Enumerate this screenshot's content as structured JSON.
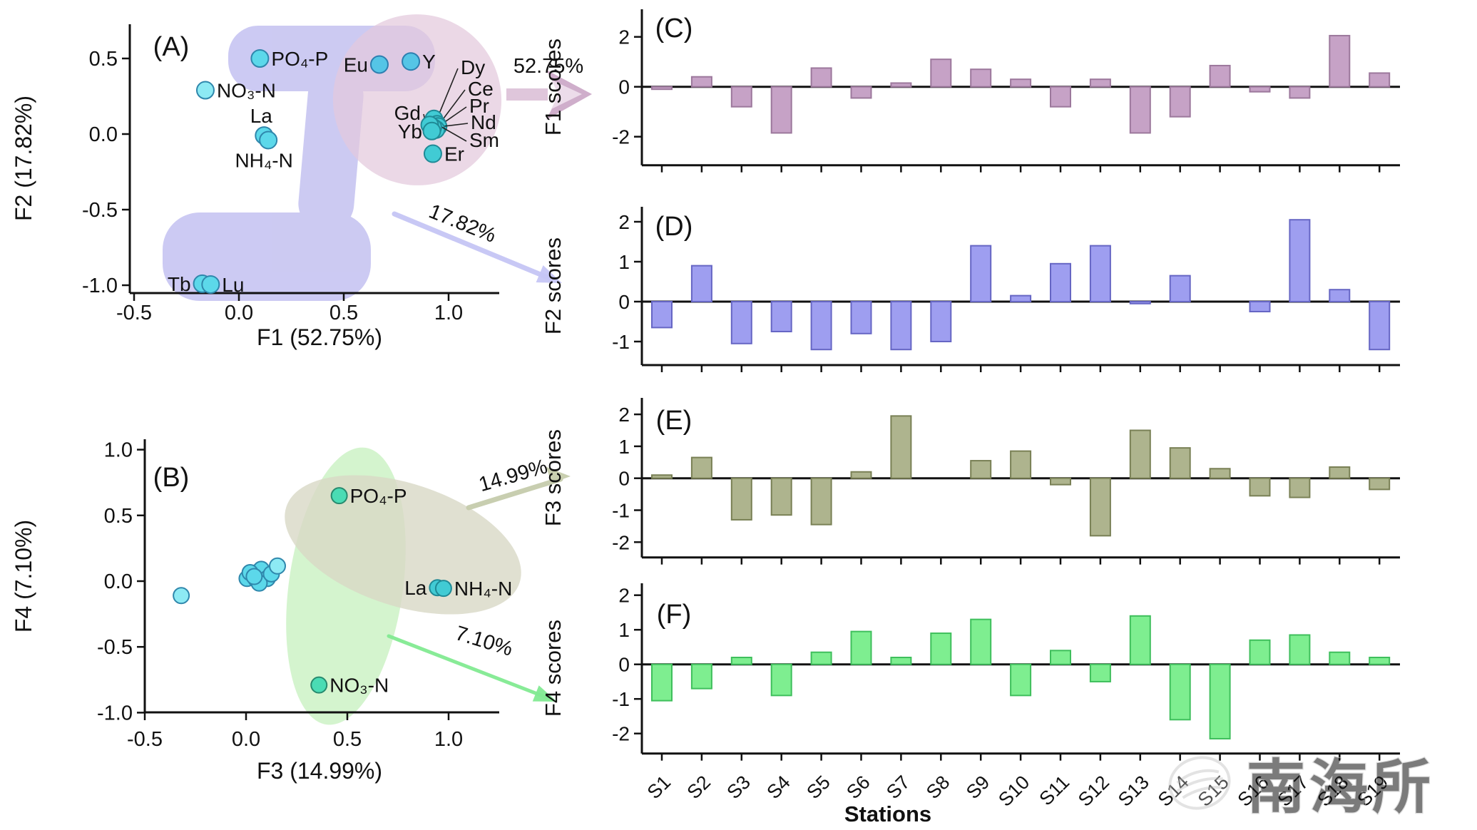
{
  "watermark": {
    "text": "南海所",
    "logo": "shell-logo"
  },
  "stations_axis_label": "Stations",
  "stations": [
    "S1",
    "S2",
    "S3",
    "S4",
    "S5",
    "S6",
    "S7",
    "S8",
    "S9",
    "S10",
    "S11",
    "S12",
    "S13",
    "S14",
    "S15",
    "S16",
    "S17",
    "S18",
    "S19"
  ],
  "colors": {
    "bar_f1_fill": "#c6a2c6",
    "bar_f1_stroke": "#9c789c",
    "bar_f2_fill": "#9e9ef0",
    "bar_f2_stroke": "#6666c4",
    "bar_f3_fill": "#aeb48e",
    "bar_f3_stroke": "#798055",
    "bar_f4_fill": "#7eee90",
    "bar_f4_stroke": "#3fbf5c",
    "point_cyan": "#5cd8ea",
    "point_cyan_stroke": "#2f87ac",
    "point_light_cyan": "#8deaf4",
    "point_blue_cyan": "#55c5e6",
    "point_blue_cyan_stroke": "#2d7fb0",
    "point_teal": "#41cbd4",
    "point_teal_stroke": "#1f8a96",
    "point_green_teal": "#4adcb4",
    "point_green_teal_stroke": "#278a6e",
    "blob_lavender": "#b9b6ee",
    "ellipse_pink": "#e3c9dd",
    "ellipse_green": "#b7ecae",
    "ellipse_olive": "#d8d8c5",
    "arrow_pink": "#cfaecb",
    "arrow_pink_light": "#ecdcea",
    "arrow_pink_shaft": "#dfc6db",
    "arrow_blue": "#c6c6f5",
    "arrow_olive": "#c6ccac",
    "arrow_green": "#82ea92",
    "axis": "#111111"
  },
  "chart_data": [
    {
      "id": "A",
      "type": "scatter",
      "panel_label": "(A)",
      "xlabel": "F1 (52.75%)",
      "ylabel": "F2 (17.82%)",
      "xtick_labels": [
        "-0.5",
        "0.0",
        "0.5",
        "1.0"
      ],
      "xtick_vals": [
        -0.5,
        0,
        0.5,
        1
      ],
      "ytick_labels": [
        "0.5",
        "0.0",
        "-0.5",
        "-1.0"
      ],
      "ytick_vals": [
        0.5,
        0,
        -0.5,
        -1
      ],
      "xlim": [
        -0.56,
        1.25
      ],
      "ylim": [
        -1.26,
        0.73
      ],
      "grid": false,
      "points": [
        {
          "label": "PO₄-P",
          "x": 0.1,
          "y": 0.5,
          "c": "cyan",
          "side": "right"
        },
        {
          "label": "NO₃-N",
          "x": -0.16,
          "y": 0.29,
          "c": "light_cyan",
          "side": "right"
        },
        {
          "label": "La",
          "x": 0.12,
          "y": -0.01,
          "c": "cyan",
          "side": "above"
        },
        {
          "label": "NH₄-N",
          "x": 0.14,
          "y": -0.04,
          "c": "cyan",
          "side": "below"
        },
        {
          "label": "Eu",
          "x": 0.67,
          "y": 0.46,
          "c": "blue_cyan",
          "side": "left"
        },
        {
          "label": "Y",
          "x": 0.82,
          "y": 0.48,
          "c": "blue_cyan",
          "side": "right"
        },
        {
          "label": "Dy",
          "x": 0.93,
          "y": 0.1,
          "c": "teal",
          "side": "callout"
        },
        {
          "label": "Ce",
          "x": 0.945,
          "y": 0.065,
          "c": "teal",
          "side": "callout"
        },
        {
          "label": "Pr",
          "x": 0.95,
          "y": 0.05,
          "c": "teal",
          "side": "callout"
        },
        {
          "label": "Nd",
          "x": 0.94,
          "y": 0.03,
          "c": "teal",
          "side": "callout"
        },
        {
          "label": "Sm",
          "x": 0.925,
          "y": 0.045,
          "c": "teal",
          "side": "callout"
        },
        {
          "label": "Gd",
          "x": 0.91,
          "y": 0.06,
          "c": "teal",
          "side": "callout"
        },
        {
          "label": "Yb",
          "x": 0.92,
          "y": 0.02,
          "c": "teal",
          "side": "callout"
        },
        {
          "label": "Er",
          "x": 0.925,
          "y": -0.13,
          "c": "teal",
          "side": "right"
        },
        {
          "label": "Tb",
          "x": -0.175,
          "y": -0.99,
          "c": "cyan",
          "side": "left"
        },
        {
          "label": "Lu",
          "x": -0.135,
          "y": -0.995,
          "c": "cyan",
          "side": "right"
        }
      ],
      "annotations": [
        {
          "id": "f1",
          "text": "52.75%"
        },
        {
          "id": "f2",
          "text": "17.82%"
        }
      ]
    },
    {
      "id": "B",
      "type": "scatter",
      "panel_label": "(B)",
      "xlabel": "F3 (14.99%)",
      "ylabel": "F4 (7.10%)",
      "xtick_labels": [
        "-0.5",
        "0.0",
        "0.5",
        "1.0"
      ],
      "xtick_vals": [
        -0.5,
        0,
        0.5,
        1
      ],
      "ytick_labels": [
        "1.0",
        "0.5",
        "0.0",
        "-0.5",
        "-1.0"
      ],
      "ytick_vals": [
        1,
        0.5,
        0,
        -0.5,
        -1
      ],
      "xlim": [
        -0.51,
        1.25
      ],
      "ylim": [
        -1.0,
        1.08
      ],
      "grid": false,
      "points": [
        {
          "label": "PO₄-P",
          "x": 0.46,
          "y": 0.65,
          "c": "green_teal",
          "side": "right"
        },
        {
          "label": "NO₃-N",
          "x": 0.36,
          "y": -0.79,
          "c": "green_teal",
          "side": "right"
        },
        {
          "label": "La",
          "x": 0.945,
          "y": -0.05,
          "c": "teal",
          "side": "left"
        },
        {
          "label": "NH₄-N",
          "x": 0.975,
          "y": -0.055,
          "c": "teal",
          "side": "right"
        },
        {
          "label": "",
          "x": -0.32,
          "y": -0.11,
          "c": "light_cyan",
          "side": "none"
        },
        {
          "label": "",
          "x": 0.005,
          "y": 0.02,
          "c": "cyan",
          "side": "none"
        },
        {
          "label": "",
          "x": 0.035,
          "y": 0.05,
          "c": "cyan",
          "side": "none"
        },
        {
          "label": "",
          "x": 0.06,
          "y": 0.07,
          "c": "cyan",
          "side": "none"
        },
        {
          "label": "",
          "x": 0.05,
          "y": 0.015,
          "c": "cyan",
          "side": "none"
        },
        {
          "label": "",
          "x": 0.085,
          "y": 0.04,
          "c": "cyan",
          "side": "none"
        },
        {
          "label": "",
          "x": 0.075,
          "y": 0.09,
          "c": "cyan",
          "side": "none"
        },
        {
          "label": "",
          "x": 0.02,
          "y": 0.065,
          "c": "cyan",
          "side": "none"
        },
        {
          "label": "",
          "x": 0.105,
          "y": 0.02,
          "c": "cyan",
          "side": "none"
        },
        {
          "label": "",
          "x": 0.065,
          "y": -0.015,
          "c": "cyan",
          "side": "none"
        },
        {
          "label": "",
          "x": 0.125,
          "y": 0.055,
          "c": "cyan",
          "side": "none"
        },
        {
          "label": "",
          "x": 0.155,
          "y": 0.115,
          "c": "light_cyan",
          "side": "none"
        },
        {
          "label": "",
          "x": 0.04,
          "y": 0.035,
          "c": "cyan",
          "side": "none"
        }
      ],
      "annotations": [
        {
          "id": "f3",
          "text": "14.99%"
        },
        {
          "id": "f4",
          "text": "7.10%"
        }
      ]
    },
    {
      "id": "C",
      "type": "bar",
      "panel_label": "(C)",
      "ylabel": "F1 scores",
      "ytick_vals": [
        2,
        0,
        -2
      ],
      "ylim": [
        -3.1,
        3.1
      ],
      "grid": false,
      "legend": "none",
      "values": [
        -0.1,
        0.4,
        -0.8,
        -1.85,
        0.75,
        -0.45,
        0.15,
        1.1,
        0.7,
        0.3,
        -0.8,
        0.3,
        -1.85,
        -1.2,
        0.85,
        -0.2,
        -0.45,
        2.05,
        0.55
      ]
    },
    {
      "id": "D",
      "type": "bar",
      "panel_label": "(D)",
      "ylabel": "F2 scores",
      "ytick_vals": [
        2,
        1,
        0,
        -1
      ],
      "ylim": [
        -1.6,
        2.4
      ],
      "grid": false,
      "legend": "none",
      "values": [
        -0.65,
        0.9,
        -1.05,
        -0.75,
        -1.2,
        -0.8,
        -1.2,
        -1.0,
        1.4,
        0.15,
        0.95,
        1.4,
        -0.05,
        0.65,
        0.0,
        -0.25,
        2.05,
        0.3,
        -1.2
      ]
    },
    {
      "id": "E",
      "type": "bar",
      "panel_label": "(E)",
      "ylabel": "F3 scores",
      "ytick_vals": [
        2,
        1,
        0,
        -1,
        -2
      ],
      "ylim": [
        -2.5,
        2.5
      ],
      "grid": false,
      "legend": "none",
      "values": [
        0.1,
        0.65,
        -1.3,
        -1.15,
        -1.45,
        0.2,
        1.95,
        0.0,
        0.55,
        0.85,
        -0.2,
        -1.8,
        1.5,
        0.95,
        0.3,
        -0.55,
        -0.6,
        0.35,
        -0.35
      ]
    },
    {
      "id": "F",
      "type": "bar",
      "panel_label": "(F)",
      "ylabel": "F4 scores",
      "ytick_vals": [
        2,
        1,
        0,
        -1,
        -2
      ],
      "ylim": [
        -2.6,
        2.3
      ],
      "grid": false,
      "legend": "none",
      "values": [
        -1.05,
        -0.7,
        0.2,
        -0.9,
        0.35,
        0.95,
        0.2,
        0.9,
        1.3,
        -0.9,
        0.4,
        -0.5,
        1.4,
        -1.6,
        -2.15,
        0.7,
        0.85,
        0.35,
        0.2
      ]
    }
  ]
}
